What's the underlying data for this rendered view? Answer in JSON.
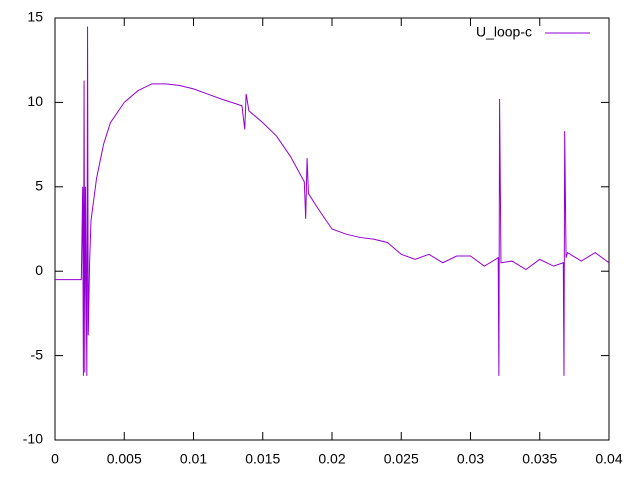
{
  "chart_data": {
    "type": "line",
    "x": [
      0,
      0.0019,
      0.002,
      0.00205,
      0.0021,
      0.00215,
      0.0022,
      0.0023,
      0.00235,
      0.0024,
      0.0025,
      0.0026,
      0.003,
      0.0035,
      0.004,
      0.005,
      0.006,
      0.007,
      0.008,
      0.009,
      0.01,
      0.011,
      0.012,
      0.0135,
      0.0137,
      0.0138,
      0.014,
      0.015,
      0.016,
      0.017,
      0.018,
      0.0181,
      0.0182,
      0.0183,
      0.019,
      0.02,
      0.021,
      0.022,
      0.023,
      0.024,
      0.025,
      0.026,
      0.027,
      0.028,
      0.029,
      0.03,
      0.031,
      0.032,
      0.03205,
      0.0321,
      0.0322,
      0.033,
      0.034,
      0.035,
      0.036,
      0.0367,
      0.03675,
      0.0368,
      0.0369,
      0.037,
      0.038,
      0.039,
      0.04
    ],
    "series": [
      {
        "name": "U_loop-c",
        "color": "#9400d3",
        "values": [
          -0.5,
          -0.5,
          5,
          -6.2,
          11.3,
          -6,
          5,
          -6.2,
          14.5,
          -3.8,
          0.6,
          3,
          5.5,
          7.5,
          8.8,
          10,
          10.7,
          11.1,
          11.1,
          11,
          10.8,
          10.5,
          10.2,
          9.8,
          8.4,
          10.5,
          9.5,
          8.8,
          8,
          6.8,
          5.3,
          3.1,
          6.7,
          4.6,
          3.7,
          2.5,
          2.2,
          2,
          1.9,
          1.7,
          1,
          0.7,
          1,
          0.5,
          0.9,
          0.9,
          0.3,
          0.8,
          -6.2,
          10.2,
          0.5,
          0.6,
          0.1,
          0.7,
          0.3,
          0.5,
          -6.2,
          8.3,
          0.8,
          1.1,
          0.6,
          1.1,
          0.5
        ]
      }
    ],
    "xlim": [
      0,
      0.04
    ],
    "xticks": [
      0,
      0.005,
      0.01,
      0.015,
      0.02,
      0.025,
      0.03,
      0.035,
      0.04
    ],
    "ylim": [
      -10,
      15
    ],
    "yticks": [
      -10,
      -5,
      0,
      5,
      10,
      15
    ],
    "legend": "top-right"
  }
}
